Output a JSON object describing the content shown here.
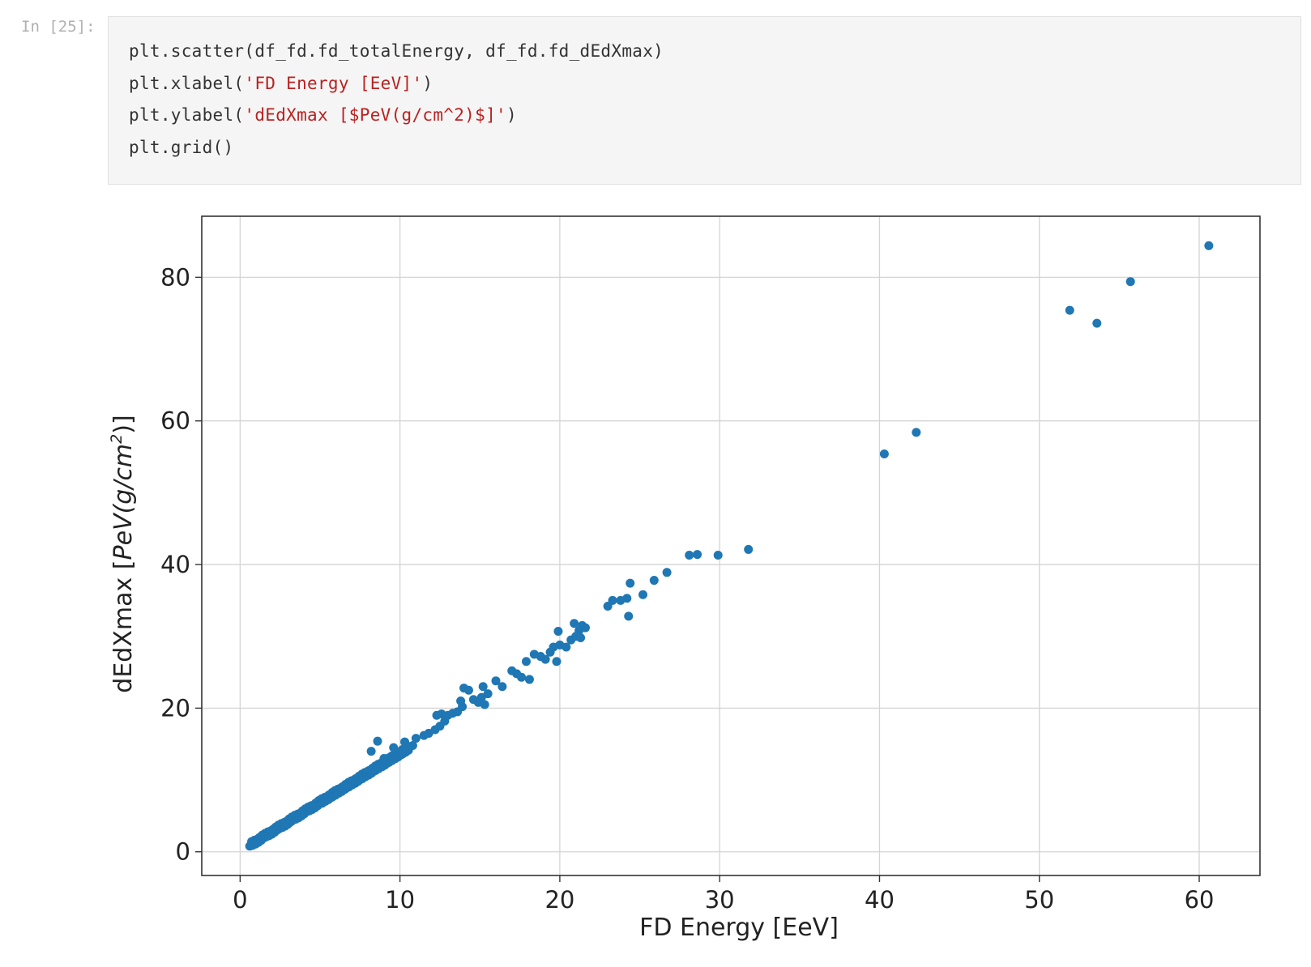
{
  "cell": {
    "prompt": "In [25]:",
    "code_lines": [
      {
        "pre": "plt.scatter(df_fd.fd_totalEnergy, df_fd.fd_dEdXmax)",
        "str": "",
        "post": ""
      },
      {
        "pre": "plt.xlabel(",
        "str": "'FD Energy [EeV]'",
        "post": ")"
      },
      {
        "pre": "plt.ylabel(",
        "str": "'dEdXmax [$PeV(g/cm^2)$]'",
        "post": ")"
      },
      {
        "pre": "plt.grid()",
        "str": "",
        "post": ""
      }
    ]
  },
  "chart_data": {
    "type": "scatter",
    "xlabel": "FD Energy [EeV]",
    "ylabel_prefix": "dEdXmax [",
    "ylabel_math": "PeV(g/cm",
    "ylabel_sup": "2",
    "ylabel_suffix": ")]",
    "xlim": [
      -2.4,
      63.8
    ],
    "ylim": [
      -3.3,
      88.5
    ],
    "xticks": [
      0,
      10,
      20,
      30,
      40,
      50,
      60
    ],
    "yticks": [
      0,
      20,
      40,
      60,
      80
    ],
    "grid": true,
    "marker_color": "#1f77b4",
    "dense_band": {
      "x_start": 0.6,
      "x_end": 10.5,
      "slope": 1.36,
      "intercept": 0.1
    },
    "points": [
      [
        8.6,
        15.4
      ],
      [
        8.2,
        14.0
      ],
      [
        9.0,
        13.0
      ],
      [
        9.6,
        14.5
      ],
      [
        10.3,
        15.3
      ],
      [
        10.8,
        14.8
      ],
      [
        11.0,
        15.8
      ],
      [
        11.5,
        16.2
      ],
      [
        11.8,
        16.5
      ],
      [
        12.2,
        17.0
      ],
      [
        12.5,
        17.5
      ],
      [
        12.8,
        18.2
      ],
      [
        12.3,
        19.0
      ],
      [
        12.6,
        19.2
      ],
      [
        13.0,
        19.0
      ],
      [
        13.3,
        19.3
      ],
      [
        13.6,
        19.5
      ],
      [
        13.9,
        20.2
      ],
      [
        13.8,
        21.0
      ],
      [
        14.0,
        22.8
      ],
      [
        14.3,
        22.5
      ],
      [
        14.6,
        21.2
      ],
      [
        14.9,
        20.8
      ],
      [
        15.1,
        21.5
      ],
      [
        15.3,
        20.5
      ],
      [
        15.5,
        22.0
      ],
      [
        15.2,
        23.0
      ],
      [
        16.0,
        23.8
      ],
      [
        16.4,
        23.0
      ],
      [
        17.0,
        25.2
      ],
      [
        17.3,
        24.8
      ],
      [
        17.6,
        24.3
      ],
      [
        17.9,
        26.5
      ],
      [
        18.1,
        24.0
      ],
      [
        18.4,
        27.5
      ],
      [
        18.8,
        27.2
      ],
      [
        19.1,
        26.8
      ],
      [
        19.4,
        27.8
      ],
      [
        19.6,
        28.5
      ],
      [
        19.8,
        26.5
      ],
      [
        20.0,
        28.8
      ],
      [
        19.9,
        30.7
      ],
      [
        20.4,
        28.5
      ],
      [
        20.7,
        29.5
      ],
      [
        20.9,
        31.8
      ],
      [
        21.0,
        30.0
      ],
      [
        21.2,
        30.8
      ],
      [
        21.4,
        31.5
      ],
      [
        21.3,
        29.8
      ],
      [
        21.6,
        31.2
      ],
      [
        23.0,
        34.2
      ],
      [
        23.3,
        35.0
      ],
      [
        23.8,
        35.0
      ],
      [
        24.2,
        35.3
      ],
      [
        24.4,
        37.4
      ],
      [
        24.3,
        32.8
      ],
      [
        25.2,
        35.8
      ],
      [
        25.9,
        37.8
      ],
      [
        26.7,
        38.9
      ],
      [
        28.1,
        41.3
      ],
      [
        28.6,
        41.4
      ],
      [
        29.9,
        41.3
      ],
      [
        31.8,
        42.1
      ],
      [
        40.3,
        55.4
      ],
      [
        42.3,
        58.4
      ],
      [
        51.9,
        75.4
      ],
      [
        53.6,
        73.6
      ],
      [
        55.7,
        79.4
      ],
      [
        60.6,
        84.4
      ]
    ]
  }
}
